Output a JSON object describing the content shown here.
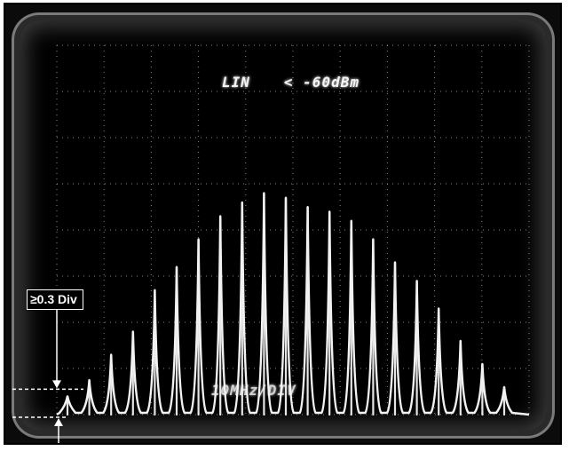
{
  "screen": {
    "mode_label": "LIN",
    "level_label": "< -60dBm",
    "bottom_label": "10MHz/DIV"
  },
  "annotation": {
    "text": "≥0.3 Div"
  },
  "trace": {
    "color": "#f2f2f2",
    "grid_color": "#bdbdbd",
    "spectral_lines": [
      {
        "level_div": 0.4
      },
      {
        "level_div": 0.75
      },
      {
        "level_div": 1.3
      },
      {
        "level_div": 1.8
      },
      {
        "level_div": 2.7
      },
      {
        "level_div": 3.2
      },
      {
        "level_div": 3.8
      },
      {
        "level_div": 4.3
      },
      {
        "level_div": 4.6
      },
      {
        "level_div": 4.8
      },
      {
        "level_div": 4.7
      },
      {
        "level_div": 4.5
      },
      {
        "level_div": 4.4
      },
      {
        "level_div": 4.2
      },
      {
        "level_div": 3.8
      },
      {
        "level_div": 3.3
      },
      {
        "level_div": 2.9
      },
      {
        "level_div": 2.3
      },
      {
        "level_div": 1.6
      },
      {
        "level_div": 1.1
      },
      {
        "level_div": 0.6
      }
    ]
  }
}
